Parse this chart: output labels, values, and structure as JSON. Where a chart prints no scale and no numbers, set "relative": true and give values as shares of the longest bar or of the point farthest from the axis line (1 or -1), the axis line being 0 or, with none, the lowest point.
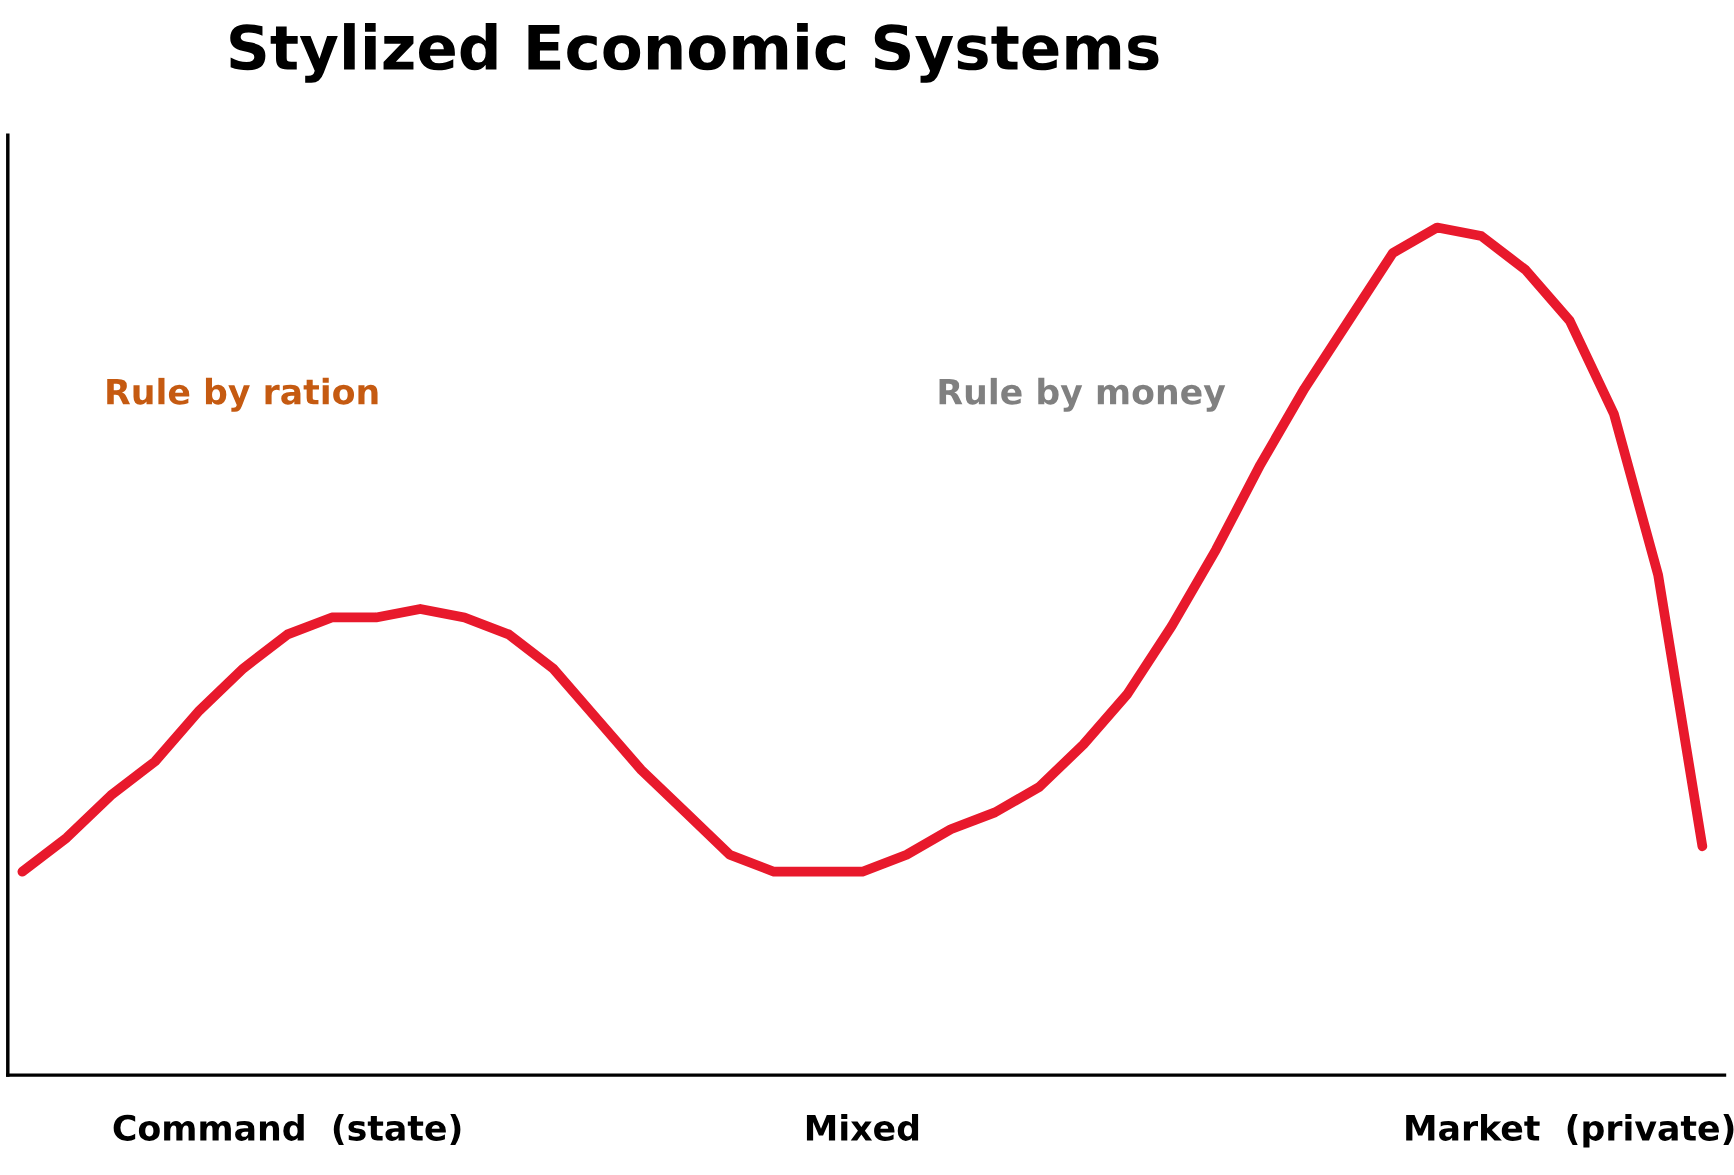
{
  "chart_data": {
    "type": "line",
    "title": "Stylized Economic Systems",
    "relative": true,
    "categories": [
      null,
      null,
      null,
      null,
      null,
      null,
      "Command  (state)",
      null,
      null,
      null,
      null,
      null,
      null,
      null,
      null,
      null,
      null,
      null,
      null,
      "Mixed",
      null,
      null,
      null,
      null,
      null,
      null,
      null,
      null,
      null,
      null,
      null,
      null,
      null,
      null,
      null,
      "Market  (private)",
      null,
      null,
      null
    ],
    "series": [
      {
        "color": "#e8192c",
        "values": [
          0.24,
          0.28,
          0.33,
          0.37,
          0.43,
          0.48,
          0.52,
          0.54,
          0.54,
          0.55,
          0.54,
          0.52,
          0.48,
          0.42,
          0.36,
          0.31,
          0.26,
          0.24,
          0.24,
          0.24,
          0.26,
          0.29,
          0.31,
          0.34,
          0.39,
          0.45,
          0.53,
          0.62,
          0.72,
          0.81,
          0.89,
          0.97,
          1.0,
          0.99,
          0.95,
          0.89,
          0.78,
          0.59,
          0.27
        ]
      }
    ],
    "annotations": [
      "Rule by ration",
      "Rule by money"
    ],
    "grid": false,
    "marker": "none",
    "line_style": "solid"
  }
}
